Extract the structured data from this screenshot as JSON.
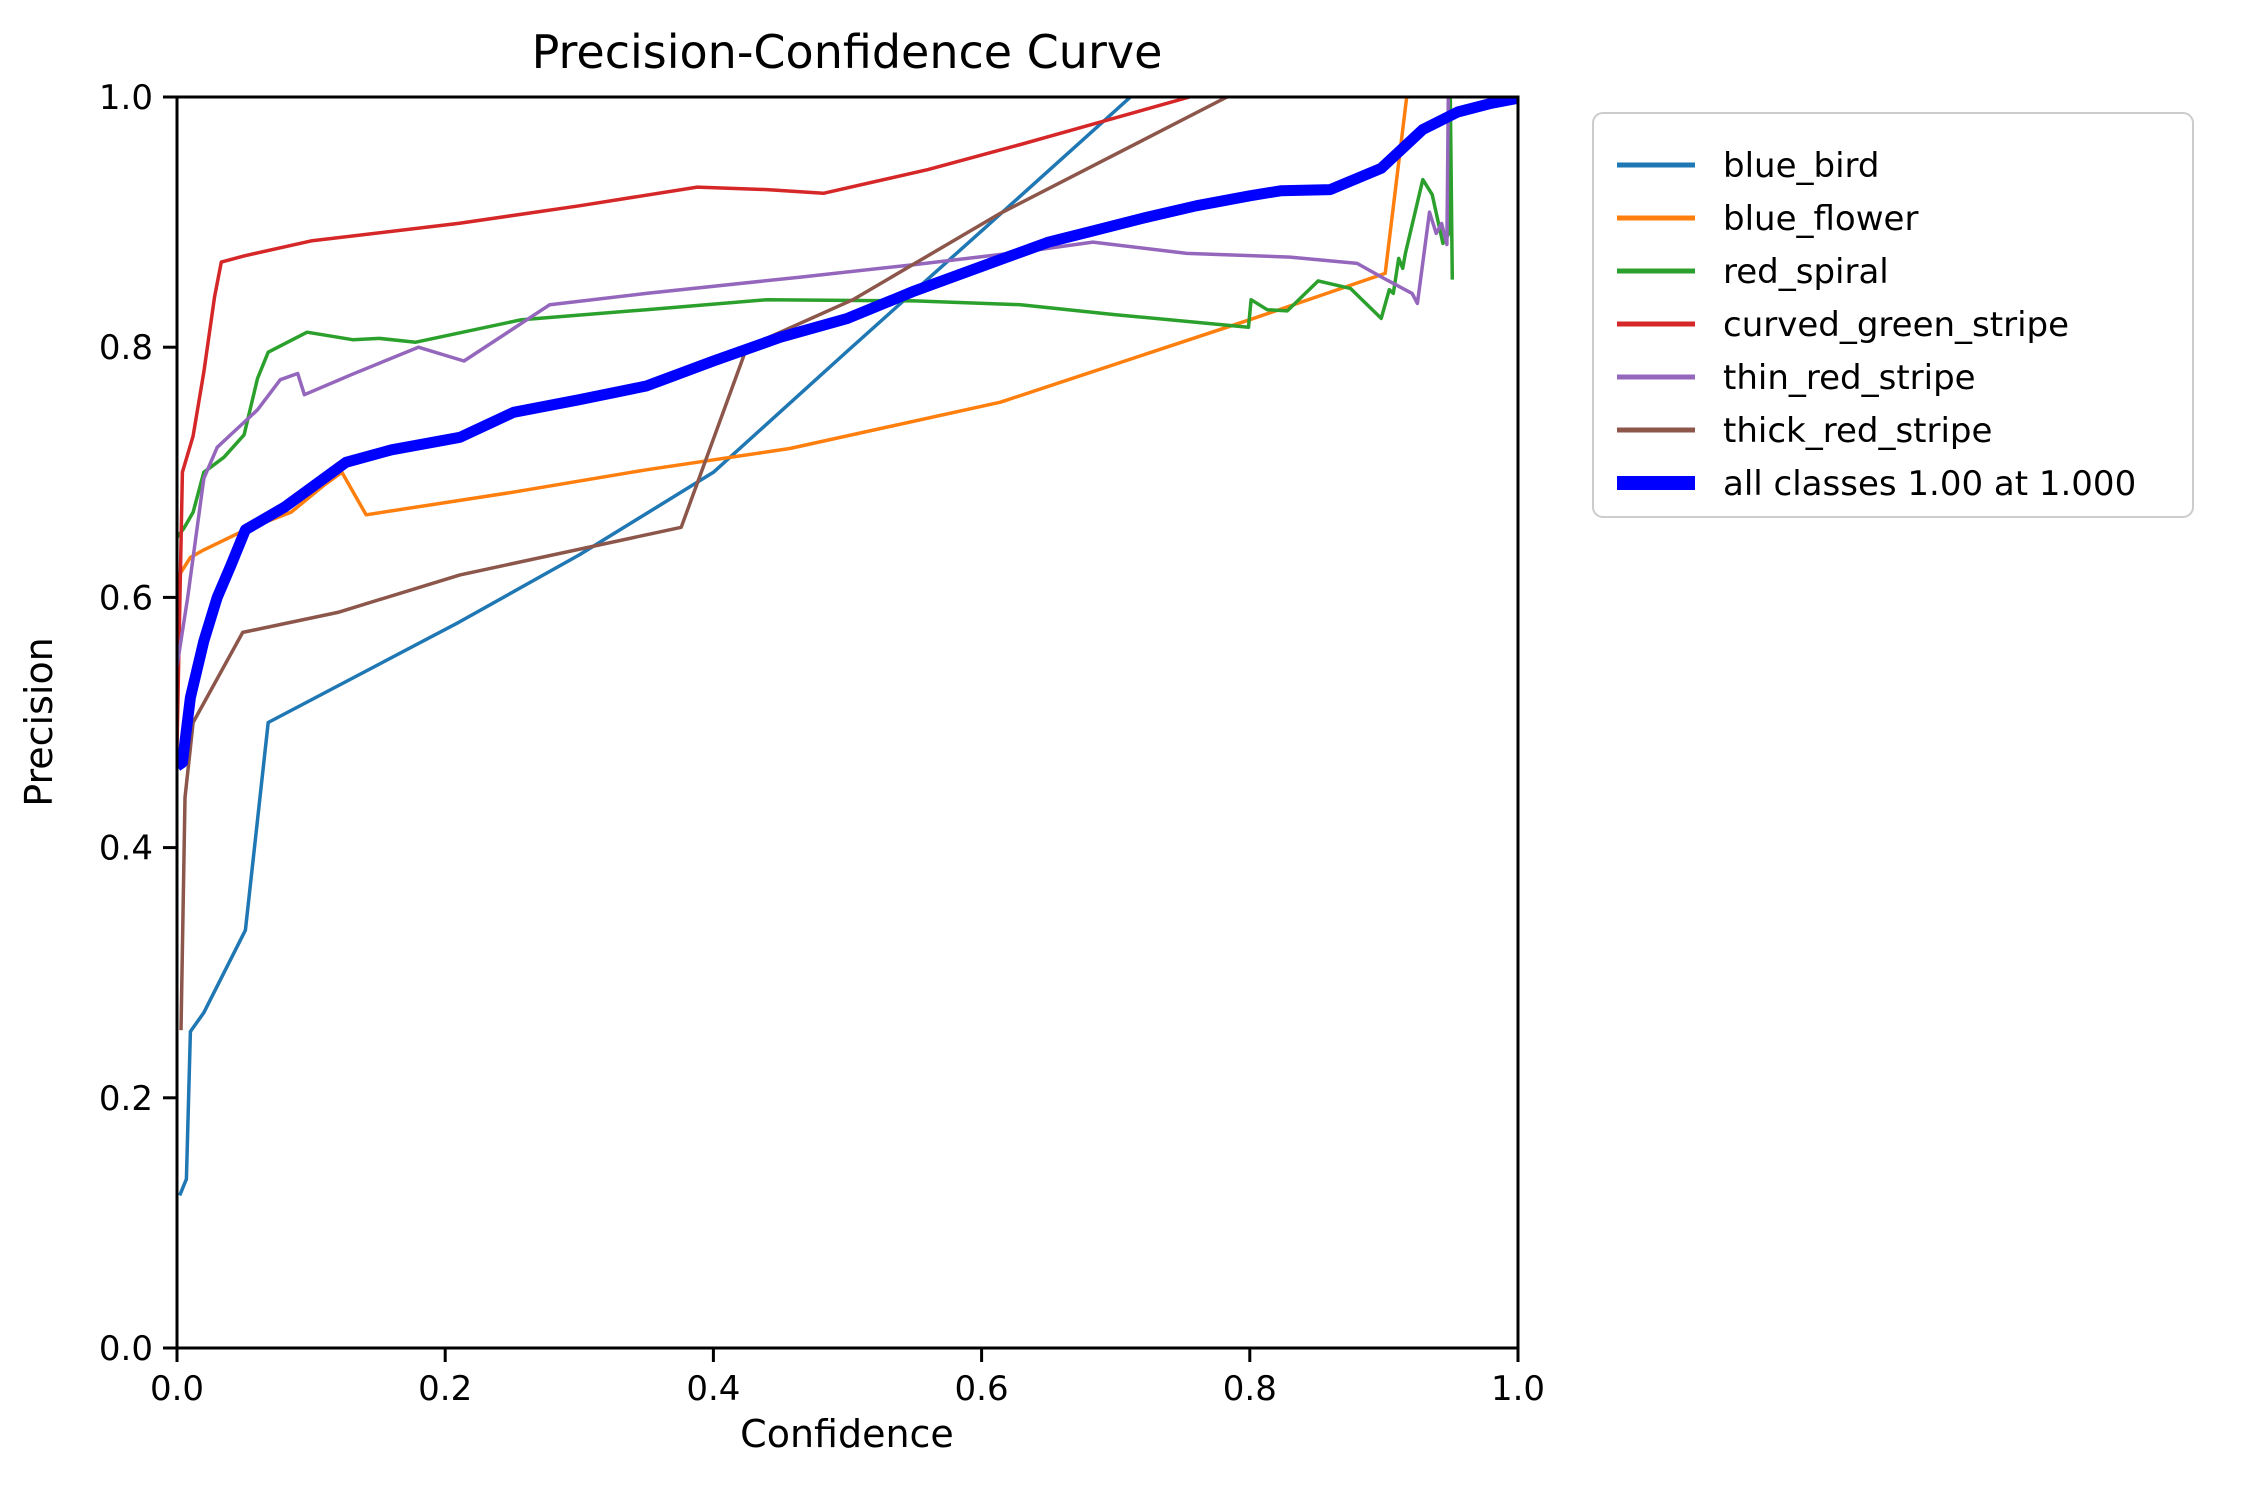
{
  "chart_data": {
    "type": "line",
    "title": "Precision-Confidence Curve",
    "xlabel": "Confidence",
    "ylabel": "Precision",
    "xlim": [
      0.0,
      1.0
    ],
    "ylim": [
      0.0,
      1.0
    ],
    "x_tick_values": [
      0.0,
      0.2,
      0.4,
      0.6,
      0.8,
      1.0
    ],
    "x_tick_labels": [
      "0.0",
      "0.2",
      "0.4",
      "0.6",
      "0.8",
      "1.0"
    ],
    "y_tick_values": [
      0.0,
      0.2,
      0.4,
      0.6,
      0.8,
      1.0
    ],
    "y_tick_labels": [
      "0.0",
      "0.2",
      "0.4",
      "0.6",
      "0.8",
      "1.0"
    ],
    "grid": false,
    "legend_position": "outside upper right",
    "axis_color": "#000000",
    "background_color": "#ffffff",
    "legend_border_color": "#cccccc",
    "series": [
      {
        "name": "blue_bird",
        "color": "#1f77b4",
        "width": 3.5,
        "points": [
          [
            0.002,
            0.122
          ],
          [
            0.007,
            0.135
          ],
          [
            0.01,
            0.253
          ],
          [
            0.02,
            0.268
          ],
          [
            0.051,
            0.334
          ],
          [
            0.068,
            0.5
          ],
          [
            0.21,
            0.58
          ],
          [
            0.3,
            0.634
          ],
          [
            0.4,
            0.7
          ],
          [
            0.5,
            0.797
          ],
          [
            0.6,
            0.893
          ],
          [
            0.711,
            1.0
          ]
        ]
      },
      {
        "name": "blue_flower",
        "color": "#ff7f0e",
        "width": 3.5,
        "points": [
          [
            0.0,
            0.615
          ],
          [
            0.01,
            0.632
          ],
          [
            0.02,
            0.638
          ],
          [
            0.051,
            0.654
          ],
          [
            0.085,
            0.668
          ],
          [
            0.11,
            0.69
          ],
          [
            0.123,
            0.7
          ],
          [
            0.141,
            0.666
          ],
          [
            0.25,
            0.684
          ],
          [
            0.35,
            0.702
          ],
          [
            0.457,
            0.719
          ],
          [
            0.614,
            0.756
          ],
          [
            0.8,
            0.822
          ],
          [
            0.901,
            0.859
          ],
          [
            0.917,
            1.0
          ]
        ]
      },
      {
        "name": "red_spiral",
        "color": "#2ca02c",
        "width": 3.5,
        "points": [
          [
            0.0,
            0.648
          ],
          [
            0.005,
            0.655
          ],
          [
            0.012,
            0.668
          ],
          [
            0.02,
            0.7
          ],
          [
            0.035,
            0.712
          ],
          [
            0.05,
            0.73
          ],
          [
            0.06,
            0.775
          ],
          [
            0.068,
            0.796
          ],
          [
            0.097,
            0.812
          ],
          [
            0.131,
            0.806
          ],
          [
            0.151,
            0.807
          ],
          [
            0.178,
            0.804
          ],
          [
            0.257,
            0.822
          ],
          [
            0.35,
            0.83
          ],
          [
            0.44,
            0.838
          ],
          [
            0.55,
            0.837
          ],
          [
            0.629,
            0.834
          ],
          [
            0.7,
            0.826
          ],
          [
            0.799,
            0.816
          ],
          [
            0.801,
            0.838
          ],
          [
            0.813,
            0.83
          ],
          [
            0.828,
            0.829
          ],
          [
            0.851,
            0.853
          ],
          [
            0.875,
            0.847
          ],
          [
            0.898,
            0.823
          ],
          [
            0.904,
            0.846
          ],
          [
            0.907,
            0.843
          ],
          [
            0.911,
            0.871
          ],
          [
            0.914,
            0.863
          ],
          [
            0.916,
            0.875
          ],
          [
            0.929,
            0.934
          ],
          [
            0.936,
            0.922
          ],
          [
            0.944,
            0.883
          ],
          [
            0.948,
            0.89
          ],
          [
            0.9495,
            1.0
          ],
          [
            0.951,
            0.854
          ]
        ]
      },
      {
        "name": "curved_green_stripe",
        "color": "#d62728",
        "width": 3.5,
        "points": [
          [
            0.0,
            0.48
          ],
          [
            0.004,
            0.7
          ],
          [
            0.012,
            0.729
          ],
          [
            0.02,
            0.78
          ],
          [
            0.028,
            0.84
          ],
          [
            0.033,
            0.868
          ],
          [
            0.05,
            0.873
          ],
          [
            0.1,
            0.885
          ],
          [
            0.21,
            0.899
          ],
          [
            0.3,
            0.913
          ],
          [
            0.388,
            0.928
          ],
          [
            0.44,
            0.926
          ],
          [
            0.482,
            0.923
          ],
          [
            0.56,
            0.942
          ],
          [
            0.629,
            0.962
          ],
          [
            0.755,
            1.0
          ]
        ]
      },
      {
        "name": "thin_red_stripe",
        "color": "#9467bd",
        "width": 3.5,
        "points": [
          [
            0.0,
            0.545
          ],
          [
            0.008,
            0.6
          ],
          [
            0.02,
            0.695
          ],
          [
            0.03,
            0.72
          ],
          [
            0.041,
            0.731
          ],
          [
            0.06,
            0.75
          ],
          [
            0.077,
            0.774
          ],
          [
            0.09,
            0.779
          ],
          [
            0.095,
            0.762
          ],
          [
            0.13,
            0.778
          ],
          [
            0.18,
            0.8
          ],
          [
            0.214,
            0.789
          ],
          [
            0.278,
            0.834
          ],
          [
            0.35,
            0.843
          ],
          [
            0.465,
            0.856
          ],
          [
            0.55,
            0.866
          ],
          [
            0.629,
            0.876
          ],
          [
            0.683,
            0.884
          ],
          [
            0.753,
            0.875
          ],
          [
            0.83,
            0.872
          ],
          [
            0.88,
            0.867
          ],
          [
            0.9,
            0.855
          ],
          [
            0.921,
            0.843
          ],
          [
            0.925,
            0.835
          ],
          [
            0.934,
            0.908
          ],
          [
            0.939,
            0.891
          ],
          [
            0.943,
            0.899
          ],
          [
            0.947,
            0.882
          ],
          [
            0.948,
            1.0
          ]
        ]
      },
      {
        "name": "thick_red_stripe",
        "color": "#8c564b",
        "width": 3.5,
        "points": [
          [
            0.003,
            0.254
          ],
          [
            0.006,
            0.44
          ],
          [
            0.012,
            0.5
          ],
          [
            0.049,
            0.572
          ],
          [
            0.12,
            0.588
          ],
          [
            0.211,
            0.618
          ],
          [
            0.376,
            0.656
          ],
          [
            0.425,
            0.8
          ],
          [
            0.504,
            0.838
          ],
          [
            0.614,
            0.907
          ],
          [
            0.783,
            1.0
          ]
        ]
      },
      {
        "name": "all classes 1.00 at 1.000",
        "color": "#0000ff",
        "width": 11,
        "points": [
          [
            0.0,
            0.465
          ],
          [
            0.004,
            0.468
          ],
          [
            0.01,
            0.52
          ],
          [
            0.02,
            0.565
          ],
          [
            0.03,
            0.6
          ],
          [
            0.04,
            0.625
          ],
          [
            0.051,
            0.654
          ],
          [
            0.08,
            0.672
          ],
          [
            0.126,
            0.708
          ],
          [
            0.16,
            0.718
          ],
          [
            0.211,
            0.728
          ],
          [
            0.251,
            0.748
          ],
          [
            0.3,
            0.758
          ],
          [
            0.35,
            0.769
          ],
          [
            0.4,
            0.789
          ],
          [
            0.45,
            0.808
          ],
          [
            0.5,
            0.823
          ],
          [
            0.55,
            0.845
          ],
          [
            0.614,
            0.87
          ],
          [
            0.65,
            0.884
          ],
          [
            0.683,
            0.893
          ],
          [
            0.72,
            0.903
          ],
          [
            0.76,
            0.913
          ],
          [
            0.8,
            0.921
          ],
          [
            0.823,
            0.925
          ],
          [
            0.86,
            0.926
          ],
          [
            0.898,
            0.943
          ],
          [
            0.929,
            0.974
          ],
          [
            0.955,
            0.988
          ],
          [
            0.98,
            0.995
          ],
          [
            1.0,
            0.999
          ]
        ]
      }
    ]
  }
}
